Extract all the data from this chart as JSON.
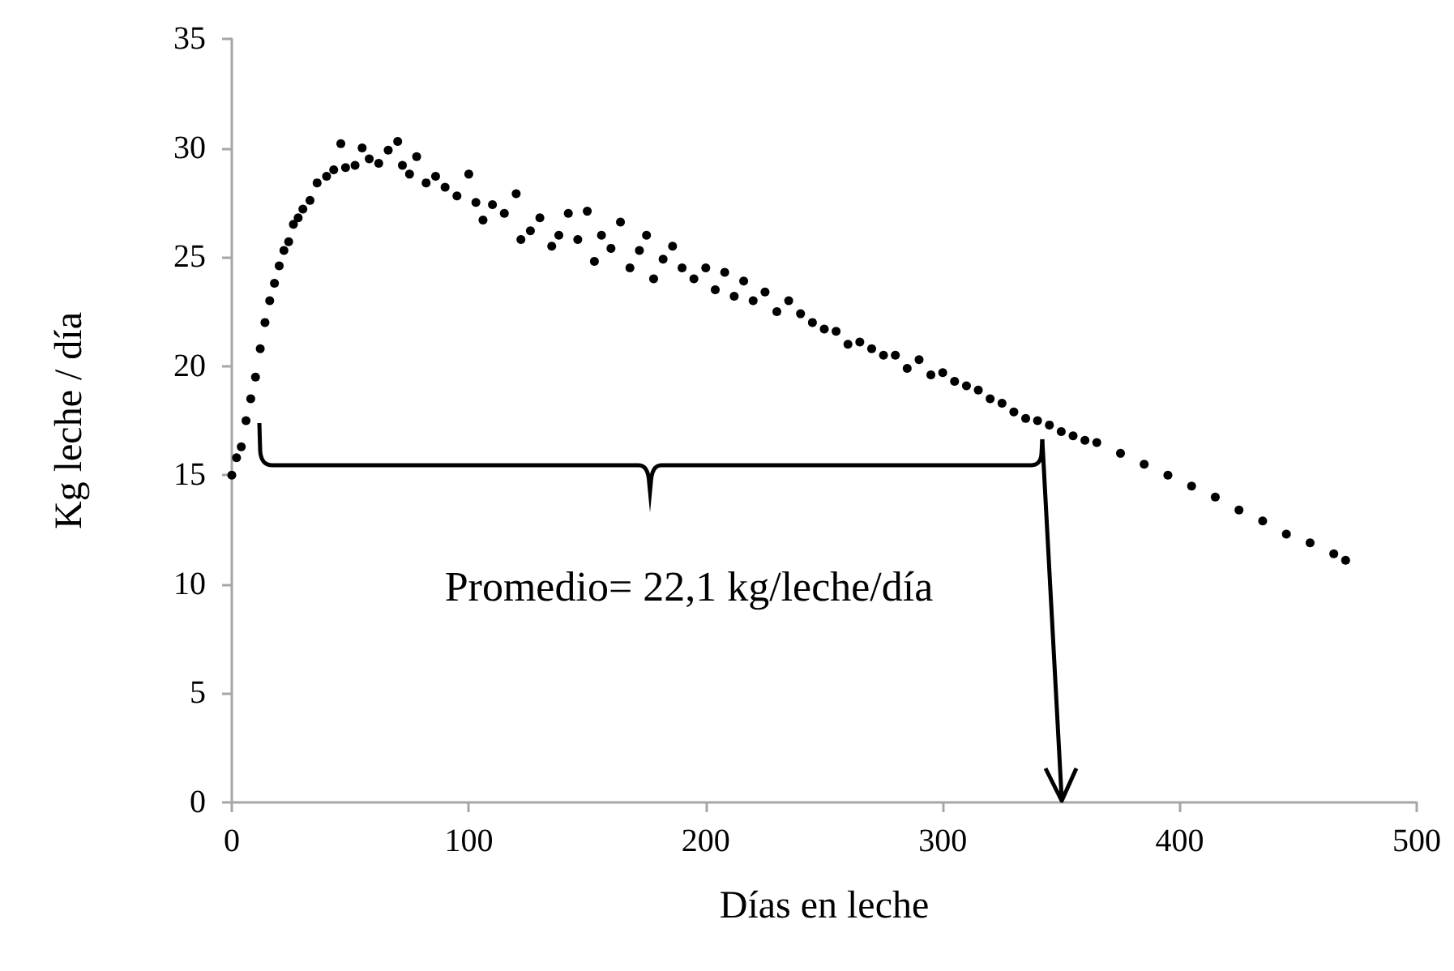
{
  "chart_data": {
    "type": "scatter",
    "xlabel": "Días en leche",
    "ylabel": "Kg leche / día",
    "color": "#000000",
    "marker": "circle",
    "x": [
      0,
      2,
      4,
      6,
      8,
      10,
      12,
      14,
      16,
      18,
      20,
      22,
      24,
      26,
      28,
      30,
      33,
      36,
      40,
      43,
      46,
      48,
      52,
      55,
      58,
      62,
      66,
      70,
      72,
      75,
      78,
      82,
      86,
      90,
      95,
      100,
      103,
      106,
      110,
      115,
      120,
      122,
      126,
      130,
      135,
      138,
      142,
      146,
      150,
      153,
      156,
      160,
      164,
      168,
      172,
      175,
      178,
      182,
      186,
      190,
      195,
      200,
      204,
      208,
      212,
      216,
      220,
      225,
      230,
      235,
      240,
      245,
      250,
      255,
      260,
      265,
      270,
      275,
      280,
      285,
      290,
      295,
      300,
      305,
      310,
      315,
      320,
      325,
      330,
      335,
      340,
      345,
      350,
      355,
      360,
      365,
      375,
      385,
      395,
      405,
      415,
      425,
      435,
      445,
      455,
      465,
      470
    ],
    "values": [
      15.0,
      15.8,
      16.3,
      17.5,
      18.5,
      19.5,
      20.8,
      22.0,
      23.0,
      23.8,
      24.6,
      25.3,
      25.7,
      26.5,
      26.8,
      27.2,
      27.6,
      28.4,
      28.7,
      29.0,
      30.2,
      29.1,
      29.2,
      30.0,
      29.5,
      29.3,
      29.9,
      30.3,
      29.2,
      28.8,
      29.6,
      28.4,
      28.7,
      28.2,
      27.8,
      28.8,
      27.5,
      26.7,
      27.4,
      27.0,
      27.9,
      25.8,
      26.2,
      26.8,
      25.5,
      26.0,
      27.0,
      25.8,
      27.1,
      24.8,
      26.0,
      25.4,
      26.6,
      24.5,
      25.3,
      26.0,
      24.0,
      24.9,
      25.5,
      24.5,
      24.0,
      24.5,
      23.5,
      24.3,
      23.2,
      23.9,
      23.0,
      23.4,
      22.5,
      23.0,
      22.4,
      22.0,
      21.7,
      21.6,
      21.0,
      21.1,
      20.8,
      20.5,
      20.5,
      19.9,
      20.3,
      19.6,
      19.7,
      19.3,
      19.1,
      18.9,
      18.5,
      18.3,
      17.9,
      17.6,
      17.5,
      17.3,
      17.0,
      16.8,
      16.6,
      16.5,
      16.0,
      15.5,
      15.0,
      14.5,
      14.0,
      13.4,
      12.9,
      12.3,
      11.9,
      11.4,
      11.1
    ],
    "xlim": [
      0,
      500
    ],
    "xticks": [
      0,
      100,
      200,
      300,
      400,
      500
    ],
    "ylim": [
      0,
      35
    ],
    "yticks": [
      0,
      5,
      10,
      15,
      20,
      25,
      30,
      35
    ],
    "annotations": [
      "Promedio= 22,1 kg/leche/día"
    ]
  }
}
